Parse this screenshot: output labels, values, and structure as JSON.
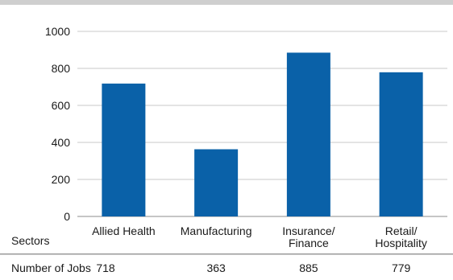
{
  "chart_data": {
    "type": "bar",
    "categories": [
      [
        "Allied Health"
      ],
      [
        "Manufacturing"
      ],
      [
        "Insurance/",
        "Finance"
      ],
      [
        "Retail/",
        "Hospitality"
      ]
    ],
    "values": [
      718,
      363,
      885,
      779
    ],
    "ylim": [
      0,
      1000
    ],
    "yticks": [
      0,
      200,
      400,
      600,
      800,
      1000
    ],
    "grid": true,
    "bar_color": "#0a61a8",
    "xlabel": "Sectors",
    "table_row": {
      "label": "Number of Jobs",
      "values": [
        "718",
        "363",
        "885",
        "779"
      ]
    }
  }
}
